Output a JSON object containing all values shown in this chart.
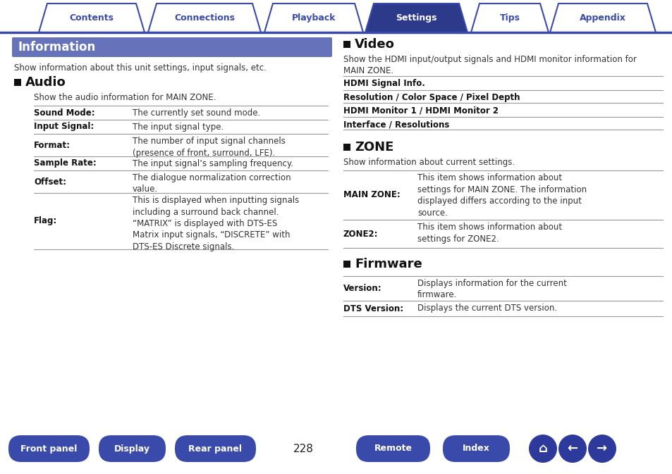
{
  "bg_color": "#ffffff",
  "tab_color_active": "#2d3a8c",
  "tab_color_inactive": "#ffffff",
  "tab_border_color": "#3a4aaa",
  "tab_text_color_active": "#ffffff",
  "tab_text_color_inactive": "#3a4aaa",
  "tabs": [
    "Contents",
    "Connections",
    "Playback",
    "Settings",
    "Tips",
    "Appendix"
  ],
  "active_tab": 3,
  "info_header_bg": "#6673bb",
  "info_header_text": "Information",
  "info_desc": "Show information about this unit settings, input signals, etc.",
  "audio_title": "Audio",
  "audio_desc": "Show the audio information for MAIN ZONE.",
  "audio_rows": [
    [
      "Sound Mode:",
      "The currently set sound mode."
    ],
    [
      "Input Signal:",
      "The input signal type."
    ],
    [
      "Format:",
      "The number of input signal channels\n(presence of front, surround, LFE)."
    ],
    [
      "Sample Rate:",
      "The input signal’s sampling frequency."
    ],
    [
      "Offset:",
      "The dialogue normalization correction\nvalue."
    ],
    [
      "Flag:",
      "This is displayed when inputting signals\nincluding a surround back channel.\n“MATRIX” is displayed with DTS-ES\nMatrix input signals, “DISCRETE” with\nDTS-ES Discrete signals."
    ]
  ],
  "video_title": "Video",
  "video_desc": "Show the HDMI input/output signals and HDMI monitor information for\nMAIN ZONE.",
  "video_rows": [
    [
      "HDMI Signal Info.",
      "bold"
    ],
    [
      "Resolution / Color Space / Pixel Depth",
      "bold"
    ],
    [
      "HDMI Monitor 1 / HDMI Monitor 2",
      "bold"
    ],
    [
      "Interface / Resolutions",
      "bold"
    ]
  ],
  "zone_title": "ZONE",
  "zone_desc": "Show information about current settings.",
  "zone_rows": [
    [
      "MAIN ZONE:",
      "This item shows information about\nsettings for MAIN ZONE. The information\ndisplayed differs according to the input\nsource."
    ],
    [
      "ZONE2:",
      "This item shows information about\nsettings for ZONE2."
    ]
  ],
  "firmware_title": "Firmware",
  "firmware_rows": [
    [
      "Version:",
      "Displays information for the current\nfirmware."
    ],
    [
      "DTS Version:",
      "Displays the current DTS version."
    ]
  ],
  "bottom_buttons": [
    "Front panel",
    "Display",
    "Rear panel",
    "Remote",
    "Index"
  ],
  "page_number": "228",
  "button_color": "#3a4aaa",
  "button_text_color": "#ffffff",
  "line_color": "#999999",
  "text_color": "#333333",
  "bold_color": "#111111"
}
